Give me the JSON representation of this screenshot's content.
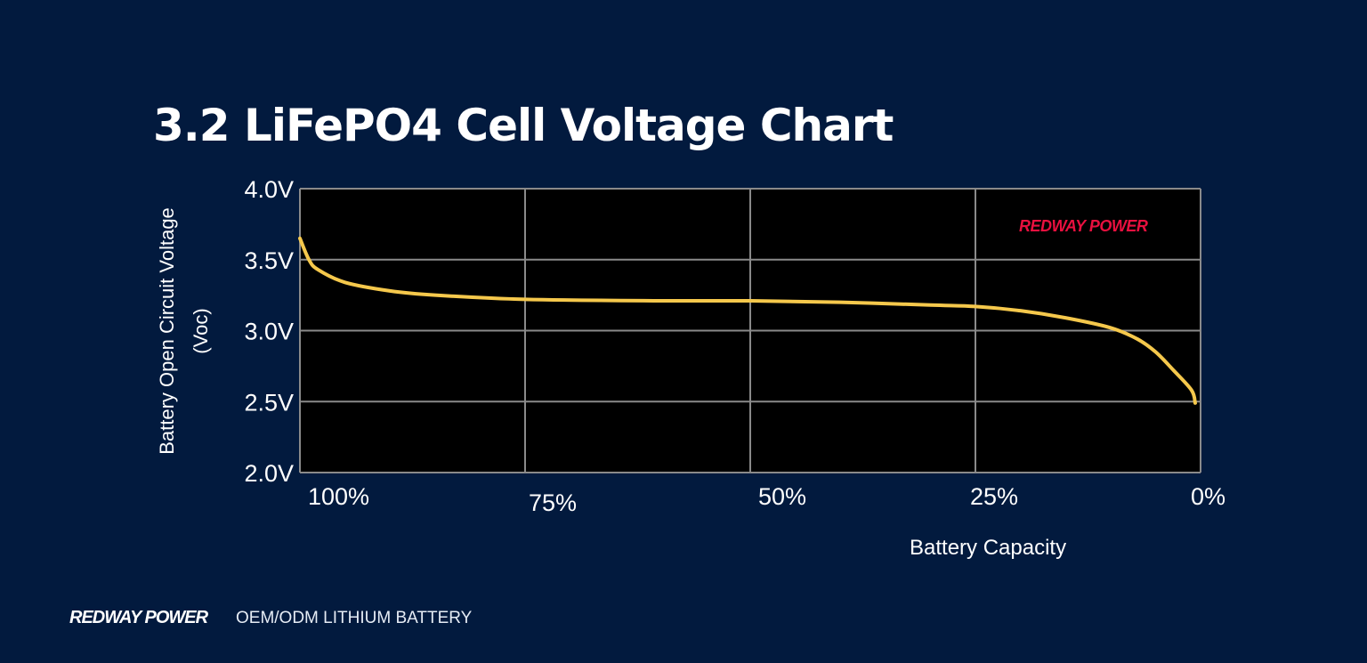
{
  "chart_data": {
    "type": "line",
    "title": "3.2 LiFePO4 Cell Voltage Chart",
    "xlabel": "Battery Capacity",
    "ylabel_lines": [
      "Battery Open Circuit Voltage",
      "(Voc)"
    ],
    "x_ticks": [
      "100%",
      "75%",
      "50%",
      "25%",
      "0%"
    ],
    "x_tick_values": [
      100,
      75,
      50,
      25,
      0
    ],
    "y_ticks": [
      "4.0V",
      "3.5V",
      "3.0V",
      "2.5V",
      "2.0V"
    ],
    "y_tick_values": [
      4.0,
      3.5,
      3.0,
      2.5,
      2.0
    ],
    "xlim": [
      100,
      0
    ],
    "ylim": [
      2.0,
      4.0
    ],
    "grid": true,
    "plot_background": "#000000",
    "line_color": "#f5c84c",
    "watermark": "REDWAY POWER",
    "watermark_color": "#e8103f",
    "series": [
      {
        "x": [
          100,
          99,
          98,
          95,
          90,
          85,
          75,
          60,
          50,
          40,
          30,
          25,
          20,
          15,
          10,
          7,
          5,
          3,
          1,
          0.6
        ],
        "y": [
          3.65,
          3.5,
          3.43,
          3.34,
          3.28,
          3.25,
          3.22,
          3.21,
          3.21,
          3.2,
          3.18,
          3.17,
          3.14,
          3.09,
          3.02,
          2.94,
          2.85,
          2.72,
          2.58,
          2.49
        ]
      }
    ]
  },
  "footer": {
    "brand": "REDWAY POWER",
    "tagline": "OEM/ODM LITHIUM BATTERY"
  }
}
